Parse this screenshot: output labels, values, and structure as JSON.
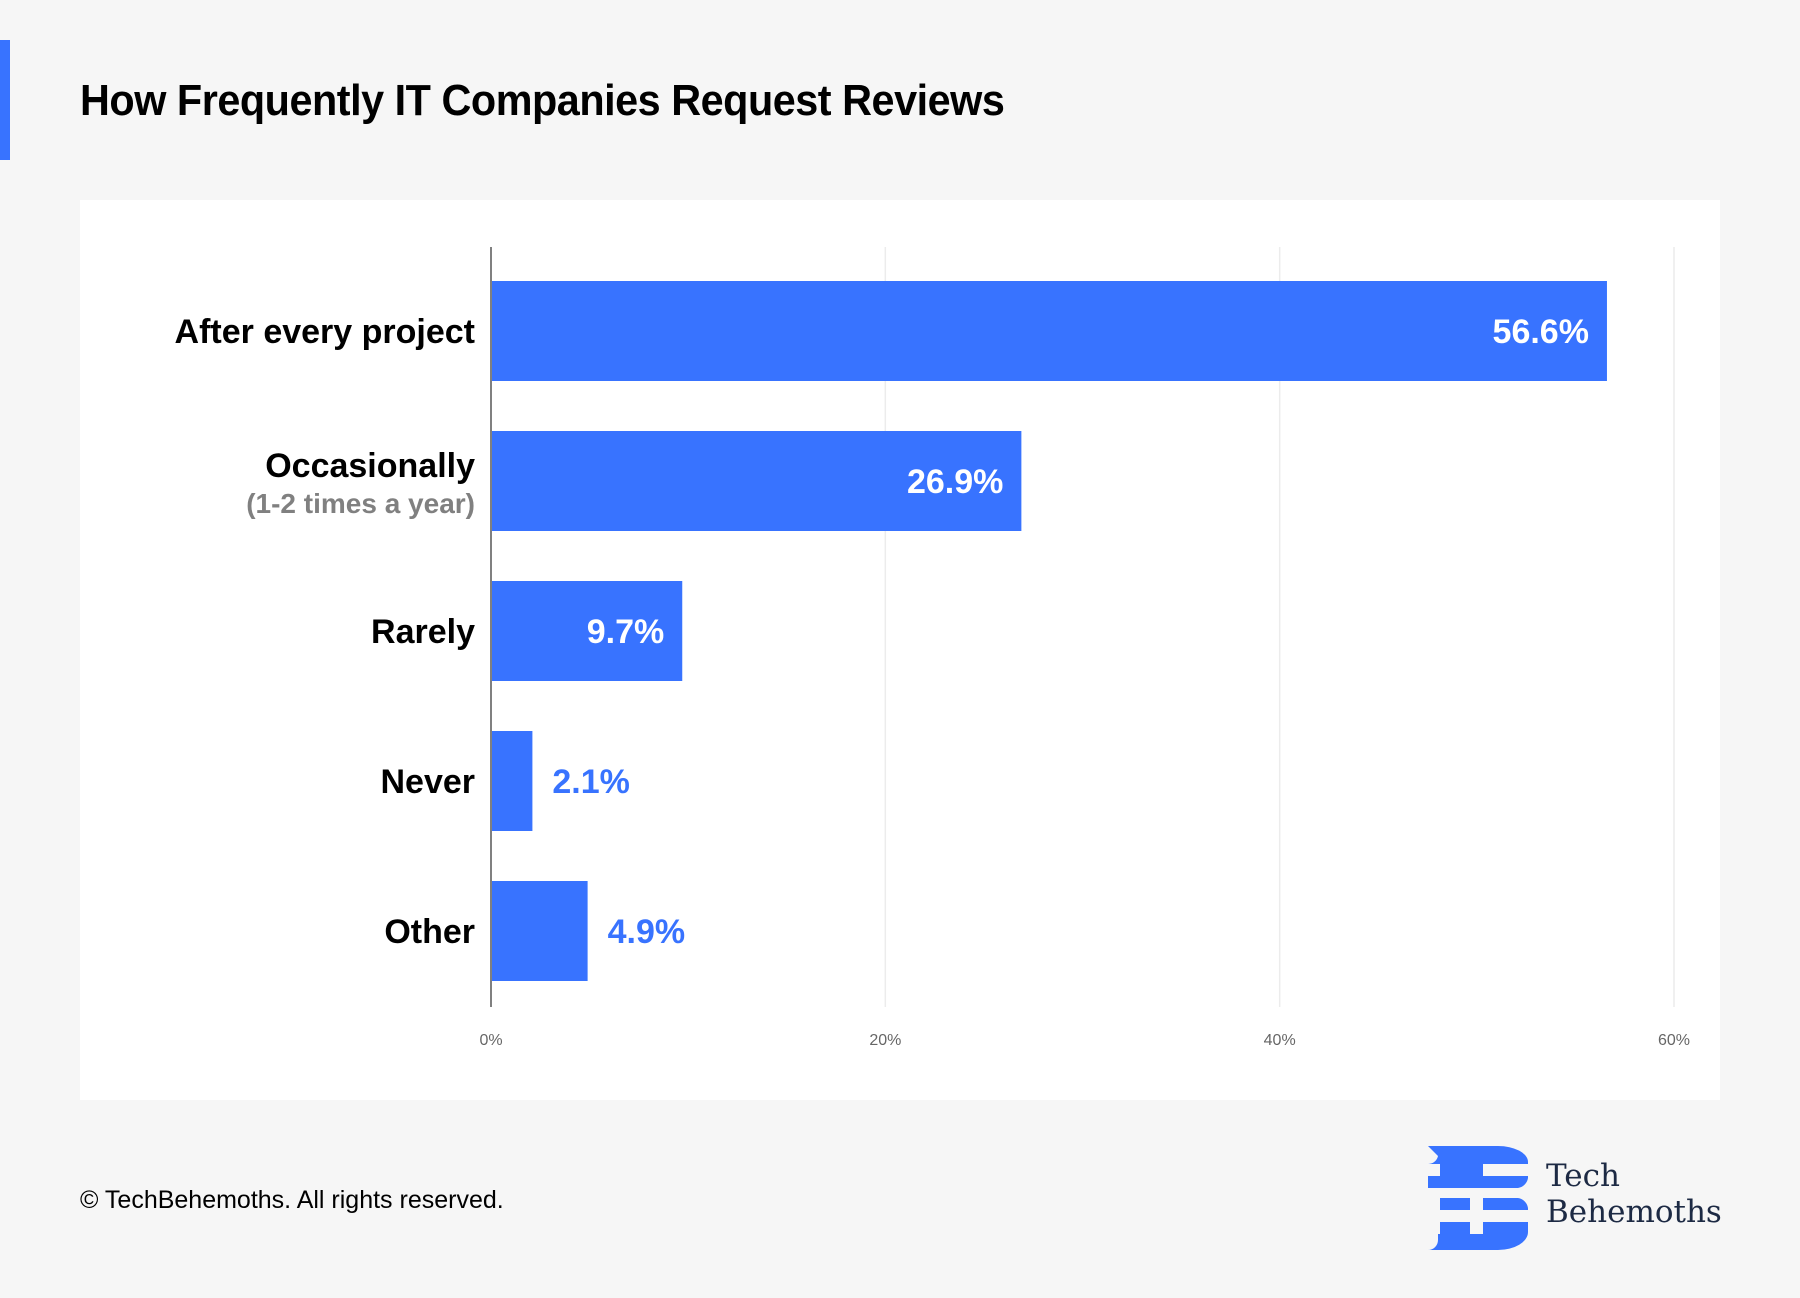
{
  "page": {
    "title": "How Frequently IT Companies Request Reviews",
    "accent_color": "#3873ff",
    "footer": "© TechBehemoths. All rights reserved.",
    "brand": {
      "line1": "Tech",
      "line2": "Behemoths"
    }
  },
  "chart_data": {
    "type": "bar",
    "orientation": "horizontal",
    "title": "How Frequently IT Companies Request Reviews",
    "xlabel": "",
    "ylabel": "",
    "xlim": [
      0,
      60
    ],
    "xticks": [
      0,
      20,
      40,
      60
    ],
    "xtick_labels": [
      "0%",
      "20%",
      "40%",
      "60%"
    ],
    "grid": "vertical",
    "legend": "none",
    "bar_color": "#3873ff",
    "categories": [
      {
        "label": "After every project",
        "sublabel": ""
      },
      {
        "label": "Occasionally",
        "sublabel": "(1-2 times a year)"
      },
      {
        "label": "Rarely",
        "sublabel": ""
      },
      {
        "label": "Never",
        "sublabel": ""
      },
      {
        "label": "Other",
        "sublabel": ""
      }
    ],
    "values": [
      56.6,
      26.9,
      9.7,
      2.1,
      4.9
    ],
    "value_labels": [
      "56.6%",
      "26.9%",
      "9.7%",
      "2.1%",
      "4.9%"
    ]
  }
}
